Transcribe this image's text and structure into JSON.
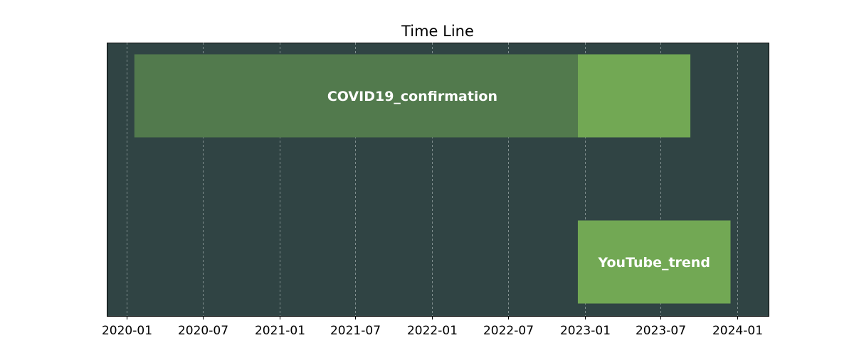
{
  "chart_data": {
    "type": "bar",
    "subtype": "timeline",
    "title": "Time Line",
    "xlabel": "",
    "ylabel": "",
    "x_axis": "date",
    "xlim": [
      "2019-11-15",
      "2024-03-15"
    ],
    "x_ticks": [
      "2020-01",
      "2020-07",
      "2021-01",
      "2021-07",
      "2022-01",
      "2022-07",
      "2023-01",
      "2023-07",
      "2024-01"
    ],
    "grid": {
      "x": true,
      "y": false,
      "style": "dashed"
    },
    "background_color": "#304444",
    "rows": [
      {
        "label": "COVID19_confirmation",
        "segments": [
          {
            "start": "2020-01-20",
            "end": "2022-12-15",
            "color": "#527a4d"
          },
          {
            "start": "2022-12-15",
            "end": "2023-09-10",
            "color": "#72a854"
          }
        ]
      },
      {
        "label": "YouTube_trend",
        "segments": [
          {
            "start": "2022-12-15",
            "end": "2023-12-15",
            "color": "#72a854"
          }
        ]
      }
    ]
  }
}
